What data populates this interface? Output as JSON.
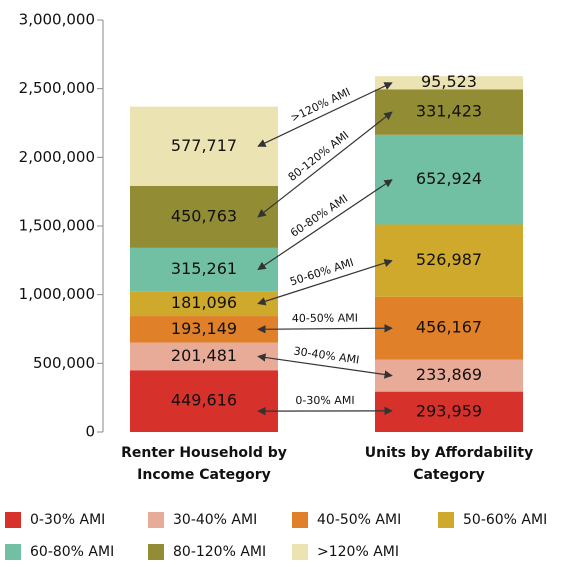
{
  "chart_data": {
    "type": "stacked_bar",
    "categories": [
      [
        "Renter Household by",
        "Income Category"
      ],
      [
        "Units by Affordability",
        "Category"
      ]
    ],
    "series": [
      {
        "name": "0-30% AMI",
        "color": "#d7312c",
        "values": [
          449616,
          293959
        ],
        "value_labels": [
          "449,616",
          "293,959"
        ]
      },
      {
        "name": "30-40% AMI",
        "color": "#e8ab98",
        "values": [
          201481,
          233869
        ],
        "value_labels": [
          "201,481",
          "233,869"
        ]
      },
      {
        "name": "40-50% AMI",
        "color": "#e0812a",
        "values": [
          193149,
          456167
        ],
        "value_labels": [
          "193,149",
          "456,167"
        ]
      },
      {
        "name": "50-60% AMI",
        "color": "#cfa92c",
        "values": [
          181096,
          526987
        ],
        "value_labels": [
          "181,096",
          "526,987"
        ]
      },
      {
        "name": "60-80% AMI",
        "color": "#72c0a4",
        "values": [
          315261,
          652924
        ],
        "value_labels": [
          "315,261",
          "652,924"
        ]
      },
      {
        "name": "80-120% AMI",
        "color": "#928d34",
        "values": [
          450763,
          331423
        ],
        "value_labels": [
          "450,763",
          "331,423"
        ]
      },
      {
        "name": ">120% AMI",
        "color": "#ece3b2",
        "values": [
          577717,
          95523
        ],
        "value_labels": [
          "577,717",
          "95,523"
        ]
      }
    ],
    "ylim": [
      0,
      3000000
    ],
    "yticks": [
      0,
      {
        "value": 500000,
        "label": "500,000"
      },
      {
        "value": 1000000,
        "label": "1,000,000"
      },
      {
        "value": 1500000,
        "label": "1,500,000"
      },
      {
        "value": 2000000,
        "label": "2,000,000"
      },
      {
        "value": 2500000,
        "label": "2,500,000"
      },
      {
        "value": 3000000,
        "label": "3,000,000"
      }
    ],
    "legend": "bottom"
  }
}
